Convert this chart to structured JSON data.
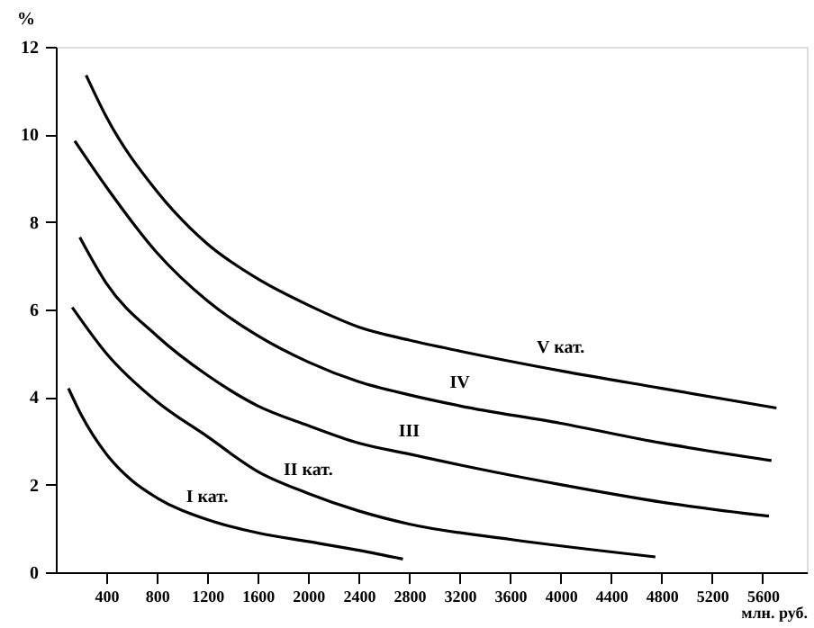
{
  "chart_data": {
    "type": "line",
    "xlabel": "млн. руб.",
    "ylabel": "%",
    "xlim": [
      0,
      5950
    ],
    "ylim": [
      0,
      12
    ],
    "xticks": [
      400,
      800,
      1200,
      1600,
      2000,
      2400,
      2800,
      3200,
      3600,
      4000,
      4400,
      4800,
      5200,
      5600
    ],
    "yticks": [
      0,
      2,
      4,
      6,
      8,
      10,
      12
    ],
    "grid": false,
    "marker": "none",
    "line_style": "solid",
    "series": [
      {
        "name": "I кат.",
        "color": "#000000",
        "x": [
          100,
          200,
          400,
          600,
          800,
          1200,
          1600,
          2000,
          2400,
          2750
        ],
        "values": [
          4.2,
          3.6,
          2.7,
          2.1,
          1.7,
          1.2,
          0.9,
          0.7,
          0.5,
          0.3
        ]
      },
      {
        "name": "II кат.",
        "color": "#000000",
        "x": [
          130,
          400,
          800,
          1200,
          1600,
          2000,
          2400,
          2800,
          3600,
          4750
        ],
        "values": [
          6.05,
          5.0,
          3.9,
          3.1,
          2.3,
          1.8,
          1.4,
          1.1,
          0.75,
          0.35
        ]
      },
      {
        "name": "III",
        "color": "#000000",
        "x": [
          190,
          400,
          800,
          1200,
          1600,
          2000,
          2400,
          2800,
          3200,
          4000,
          4800,
          5650
        ],
        "values": [
          7.65,
          6.6,
          5.4,
          4.5,
          3.8,
          3.35,
          2.95,
          2.7,
          2.45,
          2.0,
          1.6,
          1.28
        ]
      },
      {
        "name": "IV",
        "color": "#000000",
        "x": [
          150,
          400,
          800,
          1200,
          1600,
          2000,
          2400,
          2800,
          3200,
          4000,
          4800,
          5670
        ],
        "values": [
          9.85,
          8.8,
          7.3,
          6.2,
          5.4,
          4.8,
          4.35,
          4.05,
          3.8,
          3.4,
          2.95,
          2.55
        ]
      },
      {
        "name": "V кат.",
        "color": "#000000",
        "x": [
          240,
          400,
          800,
          1200,
          1600,
          2000,
          2400,
          2800,
          3200,
          4000,
          4800,
          5710
        ],
        "values": [
          11.35,
          10.4,
          8.7,
          7.5,
          6.7,
          6.1,
          5.6,
          5.3,
          5.05,
          4.6,
          4.2,
          3.75
        ]
      }
    ]
  }
}
